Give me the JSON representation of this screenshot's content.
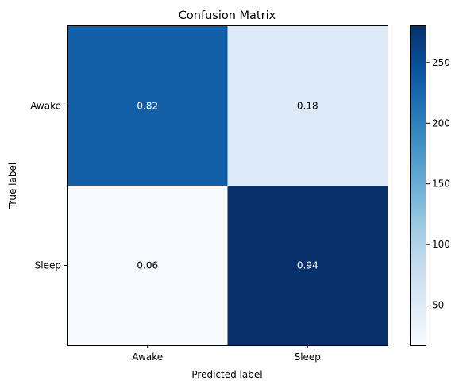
{
  "chart_data": {
    "type": "heatmap",
    "title": "Confusion Matrix",
    "xlabel": "Predicted label",
    "ylabel": "True label",
    "x_categories": [
      "Awake",
      "Sleep"
    ],
    "y_categories": [
      "Awake",
      "Sleep"
    ],
    "cell_labels": [
      [
        "0.82",
        "0.18"
      ],
      [
        "0.06",
        "0.94"
      ]
    ],
    "counts": [
      [
        233,
        51
      ],
      [
        17,
        280
      ]
    ],
    "colorbar": {
      "vmin": 17,
      "vmax": 280,
      "ticks": [
        50,
        100,
        150,
        200,
        250
      ],
      "cmap": "Blues"
    },
    "colors": {
      "light_text": "#ffffff",
      "dark_text": "#000000"
    }
  }
}
